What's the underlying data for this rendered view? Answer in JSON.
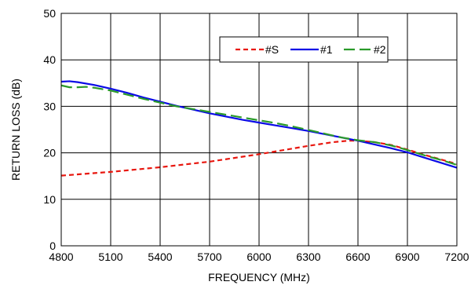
{
  "chart_data": {
    "type": "line",
    "title": "",
    "xlabel": "FREQUENCY (MHz)",
    "ylabel": "RETURN LOSS (dB)",
    "xlim": [
      4800,
      7200
    ],
    "ylim": [
      0,
      50
    ],
    "xticks": [
      4800,
      5100,
      5400,
      5700,
      6000,
      6300,
      6600,
      6900,
      7200
    ],
    "yticks": [
      0,
      10,
      20,
      30,
      40,
      50
    ],
    "grid": true,
    "legend_position": "top-right",
    "series": [
      {
        "name": "#S",
        "color": "#e8170f",
        "dash": "dashed-short",
        "x": [
          4800,
          4950,
          5100,
          5250,
          5400,
          5550,
          5700,
          5850,
          6000,
          6150,
          6300,
          6450,
          6540,
          6600,
          6700,
          6800,
          6900,
          7000,
          7100,
          7200
        ],
        "y": [
          15.1,
          15.5,
          15.9,
          16.4,
          16.9,
          17.5,
          18.1,
          18.9,
          19.7,
          20.6,
          21.5,
          22.3,
          22.6,
          22.6,
          22.3,
          21.7,
          20.7,
          19.6,
          18.6,
          17.6
        ]
      },
      {
        "name": "#1",
        "color": "#0a0ae6",
        "dash": "solid",
        "x": [
          4800,
          4850,
          4900,
          5000,
          5100,
          5200,
          5300,
          5400,
          5500,
          5600,
          5700,
          5800,
          5900,
          6000,
          6100,
          6200,
          6300,
          6400,
          6500,
          6600,
          6700,
          6800,
          6900,
          7000,
          7100,
          7200
        ],
        "y": [
          35.3,
          35.4,
          35.2,
          34.6,
          33.8,
          32.9,
          31.9,
          31.0,
          30.1,
          29.3,
          28.5,
          27.8,
          27.1,
          26.5,
          25.9,
          25.3,
          24.7,
          24.0,
          23.3,
          22.6,
          21.8,
          21.0,
          20.1,
          19.0,
          17.9,
          16.8
        ]
      },
      {
        "name": "#2",
        "color": "#2a9a2a",
        "dash": "dashed-long",
        "x": [
          4800,
          4850,
          4900,
          4950,
          5000,
          5100,
          5200,
          5300,
          5400,
          5500,
          5600,
          5700,
          5800,
          5900,
          6000,
          6100,
          6200,
          6300,
          6400,
          6500,
          6600,
          6700,
          6800,
          6900,
          7000,
          7100,
          7200
        ],
        "y": [
          34.5,
          34.1,
          34.1,
          34.2,
          34.0,
          33.4,
          32.5,
          31.6,
          30.8,
          30.0,
          29.4,
          28.8,
          28.2,
          27.6,
          27.0,
          26.4,
          25.7,
          24.9,
          24.1,
          23.3,
          22.7,
          22.3,
          21.6,
          20.6,
          19.5,
          18.5,
          17.4
        ]
      }
    ]
  }
}
